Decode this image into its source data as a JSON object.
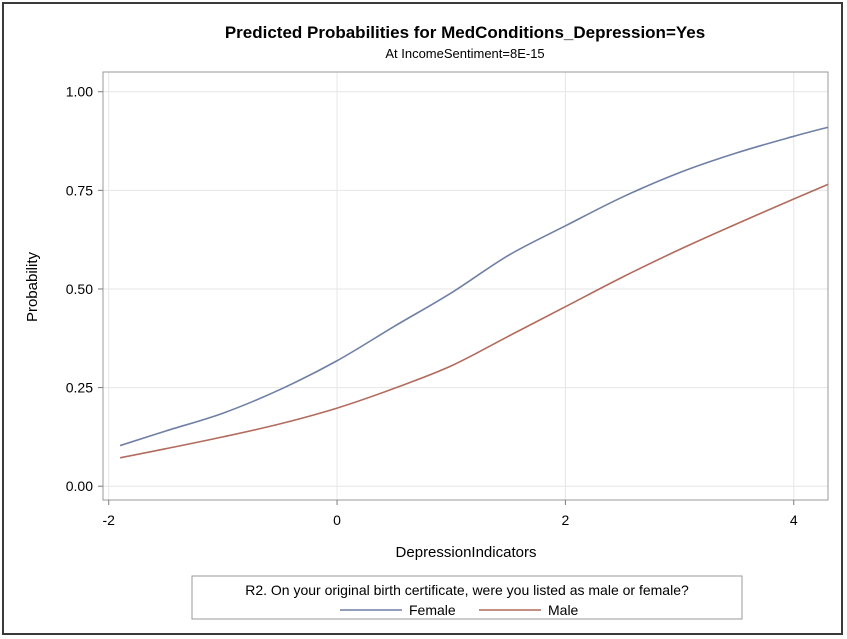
{
  "chart_data": {
    "type": "line",
    "title": "Predicted Probabilities for MedConditions_Depression=Yes",
    "subtitle": "At IncomeSentiment=8E-15",
    "xlabel": "DepressionIndicators",
    "ylabel": "Probability",
    "xlim": [
      -2.05,
      4.3
    ],
    "ylim": [
      -0.035,
      1.05
    ],
    "xticks": [
      -2,
      0,
      2,
      4
    ],
    "xtick_labels": [
      "-2",
      "0",
      "2",
      "4"
    ],
    "yticks": [
      0,
      0.25,
      0.5,
      0.75,
      1.0
    ],
    "ytick_labels": [
      "0.00",
      "0.25",
      "0.50",
      "0.75",
      "1.00"
    ],
    "grid": true,
    "legend_title": "R2. On your original birth certificate, were you listed as male or female?",
    "legend_position": "bottom",
    "series": [
      {
        "name": "Female",
        "color": "#6f7fa6",
        "x": [
          -1.9,
          -1.5,
          -1.0,
          -0.5,
          0,
          0.5,
          1.0,
          1.5,
          2.0,
          2.5,
          3.0,
          3.5,
          4.0,
          4.3
        ],
        "y": [
          0.103,
          0.14,
          0.185,
          0.245,
          0.318,
          0.405,
          0.49,
          0.585,
          0.66,
          0.733,
          0.795,
          0.845,
          0.887,
          0.91
        ]
      },
      {
        "name": "Male",
        "color": "#b26b5c",
        "x": [
          -1.9,
          -1.5,
          -1.0,
          -0.5,
          0,
          0.5,
          1.0,
          1.5,
          2.0,
          2.5,
          3.0,
          3.5,
          4.0,
          4.3
        ],
        "y": [
          0.072,
          0.095,
          0.125,
          0.158,
          0.198,
          0.248,
          0.305,
          0.38,
          0.455,
          0.53,
          0.6,
          0.665,
          0.728,
          0.765
        ]
      }
    ]
  }
}
